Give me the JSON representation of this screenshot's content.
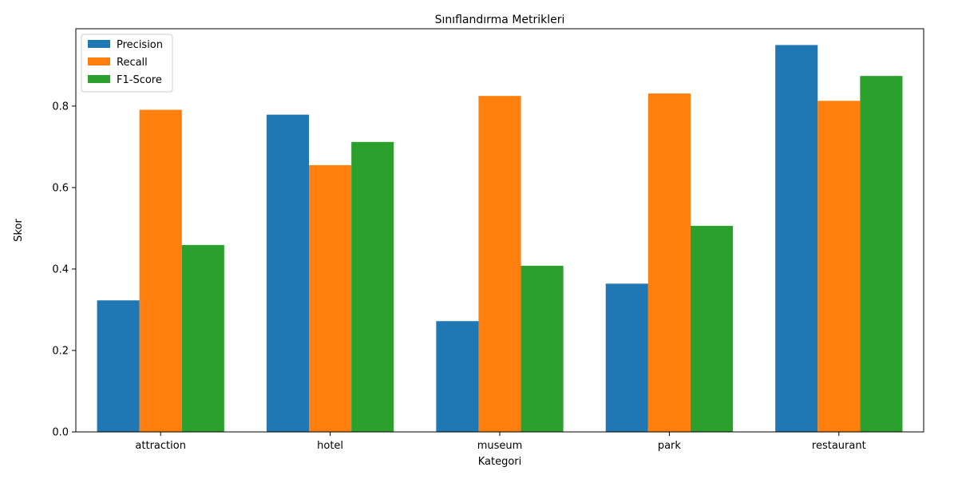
{
  "chart_data": {
    "type": "bar",
    "title": "Sınıflandırma Metrikleri",
    "xlabel": "Kategori",
    "ylabel": "Skor",
    "categories": [
      "attraction",
      "hotel",
      "museum",
      "park",
      "restaurant"
    ],
    "series": [
      {
        "name": "Precision",
        "color": "#1f77b4",
        "values": [
          0.323,
          0.779,
          0.272,
          0.364,
          0.95
        ]
      },
      {
        "name": "Recall",
        "color": "#ff7f0e",
        "values": [
          0.791,
          0.655,
          0.825,
          0.831,
          0.813
        ]
      },
      {
        "name": "F1-Score",
        "color": "#2ca02c",
        "values": [
          0.459,
          0.712,
          0.408,
          0.506,
          0.874
        ]
      }
    ],
    "ylim": [
      0,
      0.99
    ],
    "yticks": [
      "0.0",
      "0.2",
      "0.4",
      "0.6",
      "0.8"
    ],
    "grid": false,
    "legend_position": "top-left"
  }
}
